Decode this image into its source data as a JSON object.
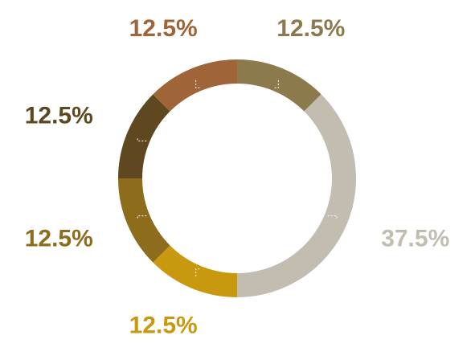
{
  "chart_data": {
    "type": "donut",
    "values": [
      12.5,
      37.5,
      12.5,
      12.5,
      12.5,
      12.5
    ],
    "value_labels": [
      "12.5%",
      "37.5%",
      "12.5%",
      "12.5%",
      "12.5%",
      "12.5%"
    ],
    "colors": [
      "#8c7a4d",
      "#c2bdb0",
      "#c8980f",
      "#8d6d1c",
      "#5f4720",
      "#9f6539"
    ]
  }
}
